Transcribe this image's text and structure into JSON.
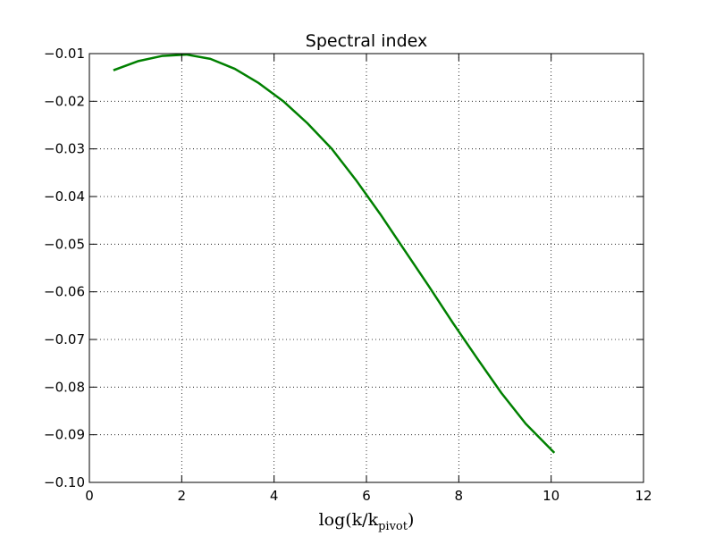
{
  "chart_data": {
    "type": "line",
    "title": "Spectral index",
    "xlabel": "log(k/k",
    "xlabel_sub": "pivot",
    "xlabel_close": ")",
    "ylabel": "",
    "xlim": [
      0,
      12
    ],
    "ylim": [
      -0.1,
      -0.01
    ],
    "grid": true,
    "x_ticks": [
      0,
      2,
      4,
      6,
      8,
      10,
      12
    ],
    "x_tick_labels": [
      "0",
      "2",
      "4",
      "6",
      "8",
      "10",
      "12"
    ],
    "y_ticks": [
      -0.01,
      -0.02,
      -0.03,
      -0.04,
      -0.05,
      -0.06,
      -0.07,
      -0.08,
      -0.09,
      -0.1
    ],
    "y_tick_labels": [
      "−0.01",
      "−0.02",
      "−0.03",
      "−0.04",
      "−0.05",
      "−0.06",
      "−0.07",
      "−0.08",
      "−0.09",
      "−0.10"
    ],
    "series": [
      {
        "color": "#008000",
        "x": [
          0.52,
          1.05,
          1.57,
          2.1,
          2.62,
          3.15,
          3.67,
          4.2,
          4.72,
          5.25,
          5.77,
          6.3,
          6.82,
          7.35,
          7.87,
          8.4,
          8.92,
          9.45,
          10.07
        ],
        "y": [
          -0.0135,
          -0.0116,
          -0.0105,
          -0.0102,
          -0.0111,
          -0.0132,
          -0.0162,
          -0.02,
          -0.0246,
          -0.03,
          -0.0365,
          -0.0437,
          -0.0512,
          -0.0588,
          -0.0665,
          -0.074,
          -0.0812,
          -0.0877,
          -0.0938
        ]
      }
    ]
  }
}
